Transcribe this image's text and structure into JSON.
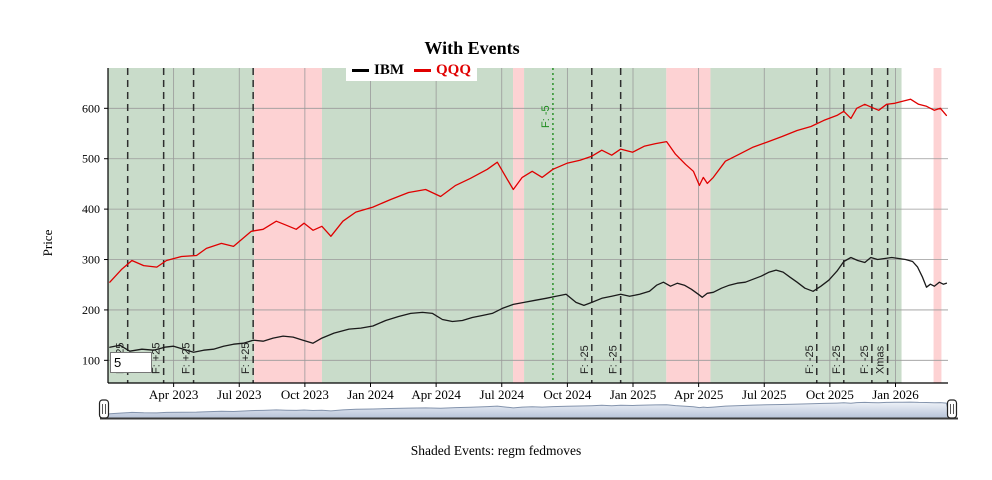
{
  "header": {
    "title": "With Events"
  },
  "legend": {
    "items": [
      {
        "label": "IBM",
        "color": "#000000"
      },
      {
        "label": "QQQ",
        "color": "#e00000"
      }
    ]
  },
  "controls": {
    "offset_input_value": "5"
  },
  "caption": {
    "text": "Shaded Events: regm fedmoves"
  },
  "chart_data": {
    "type": "line",
    "title": "With Events",
    "xlabel": "",
    "ylabel": "Price",
    "xlim": [
      2023.0,
      2026.2
    ],
    "ylim": [
      55,
      680
    ],
    "grid": true,
    "legend_position": "top",
    "yticks": [
      100,
      200,
      300,
      400,
      500,
      600
    ],
    "xticks": [
      {
        "x": 2023.25,
        "label": "Apr 2023"
      },
      {
        "x": 2023.5,
        "label": "Jul 2023"
      },
      {
        "x": 2023.75,
        "label": "Oct 2023"
      },
      {
        "x": 2024.0,
        "label": "Jan 2024"
      },
      {
        "x": 2024.25,
        "label": "Apr 2024"
      },
      {
        "x": 2024.5,
        "label": "Jul 2024"
      },
      {
        "x": 2024.75,
        "label": "Oct 2024"
      },
      {
        "x": 2025.0,
        "label": "Jan 2025"
      },
      {
        "x": 2025.25,
        "label": "Apr 2025"
      },
      {
        "x": 2025.5,
        "label": "Jul 2025"
      },
      {
        "x": 2025.75,
        "label": "Oct 2025"
      },
      {
        "x": 2026.0,
        "label": "Jan 2026"
      }
    ],
    "shaded_regions": [
      {
        "x0": 2023.0,
        "x1": 2023.557,
        "color": "#c9dcca"
      },
      {
        "x0": 2023.557,
        "x1": 2023.815,
        "color": "#fdd2d3"
      },
      {
        "x0": 2023.815,
        "x1": 2024.543,
        "color": "#c9dcca"
      },
      {
        "x0": 2024.543,
        "x1": 2024.585,
        "color": "#fdd2d3"
      },
      {
        "x0": 2024.585,
        "x1": 2025.127,
        "color": "#c9dcca"
      },
      {
        "x0": 2025.127,
        "x1": 2025.295,
        "color": "#fdd2d3"
      },
      {
        "x0": 2025.295,
        "x1": 2026.023,
        "color": "#c9dcca"
      },
      {
        "x0": 2026.145,
        "x1": 2026.175,
        "color": "#fdd2d3"
      }
    ],
    "events": [
      {
        "x": 2023.075,
        "label": "F: +25",
        "line": "dashed",
        "color": "#2e2e2e",
        "label_side": "bottom"
      },
      {
        "x": 2023.212,
        "label": "F: +25",
        "line": "dashed",
        "color": "#2e2e2e",
        "label_side": "bottom"
      },
      {
        "x": 2023.326,
        "label": "F: +25",
        "line": "dashed",
        "color": "#2e2e2e",
        "label_side": "bottom"
      },
      {
        "x": 2023.553,
        "label": "F: +25",
        "line": "dashed",
        "color": "#2e2e2e",
        "label_side": "bottom"
      },
      {
        "x": 2024.695,
        "label": "F: -5",
        "line": "dotted",
        "color": "#1e8c1e",
        "label_side": "top"
      },
      {
        "x": 2024.843,
        "label": "F: -25",
        "line": "dashed",
        "color": "#2e2e2e",
        "label_side": "bottom"
      },
      {
        "x": 2024.953,
        "label": "F: -25",
        "line": "dashed",
        "color": "#2e2e2e",
        "label_side": "bottom"
      },
      {
        "x": 2025.7,
        "label": "F: -25",
        "line": "dashed",
        "color": "#2e2e2e",
        "label_side": "bottom"
      },
      {
        "x": 2025.803,
        "label": "F: -25",
        "line": "dashed",
        "color": "#2e2e2e",
        "label_side": "bottom"
      },
      {
        "x": 2025.91,
        "label": "F: -25",
        "line": "dashed",
        "color": "#2e2e2e",
        "label_side": "bottom"
      },
      {
        "x": 2025.97,
        "label": "Xmas",
        "line": "dashed",
        "color": "#2e2e2e",
        "label_side": "bottom"
      }
    ],
    "series": [
      {
        "name": "IBM",
        "color": "#1a1a1a",
        "points": [
          [
            2023.007,
            126
          ],
          [
            2023.045,
            130
          ],
          [
            2023.083,
            118
          ],
          [
            2023.129,
            122
          ],
          [
            2023.174,
            120
          ],
          [
            2023.216,
            126
          ],
          [
            2023.25,
            128
          ],
          [
            2023.288,
            122
          ],
          [
            2023.326,
            116
          ],
          [
            2023.364,
            120
          ],
          [
            2023.402,
            122
          ],
          [
            2023.44,
            128
          ],
          [
            2023.478,
            132
          ],
          [
            2023.516,
            134
          ],
          [
            2023.553,
            140
          ],
          [
            2023.591,
            138
          ],
          [
            2023.629,
            144
          ],
          [
            2023.667,
            148
          ],
          [
            2023.705,
            146
          ],
          [
            2023.743,
            140
          ],
          [
            2023.781,
            134
          ],
          [
            2023.815,
            144
          ],
          [
            2023.861,
            154
          ],
          [
            2023.918,
            162
          ],
          [
            2023.963,
            164
          ],
          [
            2024.009,
            168
          ],
          [
            2024.058,
            179
          ],
          [
            2024.107,
            187
          ],
          [
            2024.153,
            193
          ],
          [
            2024.198,
            195
          ],
          [
            2024.236,
            193
          ],
          [
            2024.274,
            181
          ],
          [
            2024.312,
            177
          ],
          [
            2024.35,
            179
          ],
          [
            2024.388,
            185
          ],
          [
            2024.426,
            189
          ],
          [
            2024.464,
            193
          ],
          [
            2024.502,
            203
          ],
          [
            2024.544,
            211
          ],
          [
            2024.585,
            215
          ],
          [
            2024.627,
            219
          ],
          [
            2024.669,
            223
          ],
          [
            2024.707,
            227
          ],
          [
            2024.745,
            231
          ],
          [
            2024.783,
            215
          ],
          [
            2024.813,
            209
          ],
          [
            2024.843,
            215
          ],
          [
            2024.881,
            223
          ],
          [
            2024.919,
            227
          ],
          [
            2024.953,
            231
          ],
          [
            2024.987,
            227
          ],
          [
            2025.025,
            231
          ],
          [
            2025.063,
            237
          ],
          [
            2025.09,
            249
          ],
          [
            2025.116,
            255
          ],
          [
            2025.143,
            247
          ],
          [
            2025.169,
            253
          ],
          [
            2025.196,
            249
          ],
          [
            2025.223,
            241
          ],
          [
            2025.249,
            231
          ],
          [
            2025.264,
            225
          ],
          [
            2025.283,
            233
          ],
          [
            2025.306,
            235
          ],
          [
            2025.337,
            243
          ],
          [
            2025.367,
            249
          ],
          [
            2025.397,
            253
          ],
          [
            2025.428,
            255
          ],
          [
            2025.458,
            261
          ],
          [
            2025.488,
            267
          ],
          [
            2025.519,
            275
          ],
          [
            2025.545,
            279
          ],
          [
            2025.572,
            275
          ],
          [
            2025.598,
            265
          ],
          [
            2025.625,
            255
          ],
          [
            2025.655,
            243
          ],
          [
            2025.686,
            237
          ],
          [
            2025.716,
            247
          ],
          [
            2025.746,
            259
          ],
          [
            2025.777,
            277
          ],
          [
            2025.803,
            296
          ],
          [
            2025.83,
            304
          ],
          [
            2025.856,
            298
          ],
          [
            2025.883,
            294
          ],
          [
            2025.906,
            304
          ],
          [
            2025.932,
            300
          ],
          [
            2025.959,
            302
          ],
          [
            2025.986,
            304
          ],
          [
            2026.012,
            302
          ],
          [
            2026.038,
            300
          ],
          [
            2026.065,
            296
          ],
          [
            2026.084,
            285
          ],
          [
            2026.103,
            265
          ],
          [
            2026.118,
            245
          ],
          [
            2026.133,
            251
          ],
          [
            2026.148,
            247
          ],
          [
            2026.167,
            255
          ],
          [
            2026.182,
            251
          ],
          [
            2026.194,
            253
          ]
        ]
      },
      {
        "name": "QQQ",
        "color": "#e00000",
        "points": [
          [
            2023.007,
            255
          ],
          [
            2023.053,
            281
          ],
          [
            2023.091,
            298
          ],
          [
            2023.136,
            288
          ],
          [
            2023.186,
            285
          ],
          [
            2023.223,
            298
          ],
          [
            2023.28,
            306
          ],
          [
            2023.337,
            308
          ],
          [
            2023.375,
            322
          ],
          [
            2023.432,
            332
          ],
          [
            2023.478,
            326
          ],
          [
            2023.546,
            356
          ],
          [
            2023.591,
            360
          ],
          [
            2023.641,
            376
          ],
          [
            2023.679,
            368
          ],
          [
            2023.717,
            360
          ],
          [
            2023.747,
            372
          ],
          [
            2023.781,
            358
          ],
          [
            2023.815,
            366
          ],
          [
            2023.849,
            346
          ],
          [
            2023.895,
            376
          ],
          [
            2023.944,
            394
          ],
          [
            2024.009,
            404
          ],
          [
            2024.077,
            419
          ],
          [
            2024.145,
            433
          ],
          [
            2024.21,
            439
          ],
          [
            2024.267,
            425
          ],
          [
            2024.324,
            447
          ],
          [
            2024.38,
            461
          ],
          [
            2024.445,
            479
          ],
          [
            2024.483,
            493
          ],
          [
            2024.521,
            459
          ],
          [
            2024.544,
            439
          ],
          [
            2024.578,
            463
          ],
          [
            2024.616,
            475
          ],
          [
            2024.654,
            463
          ],
          [
            2024.695,
            479
          ],
          [
            2024.748,
            491
          ],
          [
            2024.798,
            497
          ],
          [
            2024.843,
            505
          ],
          [
            2024.881,
            517
          ],
          [
            2024.919,
            507
          ],
          [
            2024.953,
            519
          ],
          [
            2024.999,
            513
          ],
          [
            2025.044,
            525
          ],
          [
            2025.086,
            530
          ],
          [
            2025.128,
            534
          ],
          [
            2025.162,
            509
          ],
          [
            2025.2,
            489
          ],
          [
            2025.23,
            475
          ],
          [
            2025.253,
            447
          ],
          [
            2025.268,
            463
          ],
          [
            2025.283,
            451
          ],
          [
            2025.306,
            463
          ],
          [
            2025.352,
            495
          ],
          [
            2025.405,
            509
          ],
          [
            2025.458,
            523
          ],
          [
            2025.511,
            533
          ],
          [
            2025.568,
            544
          ],
          [
            2025.625,
            556
          ],
          [
            2025.678,
            564
          ],
          [
            2025.727,
            576
          ],
          [
            2025.777,
            586
          ],
          [
            2025.803,
            594
          ],
          [
            2025.83,
            580
          ],
          [
            2025.852,
            600
          ],
          [
            2025.883,
            608
          ],
          [
            2025.909,
            602
          ],
          [
            2025.936,
            596
          ],
          [
            2025.966,
            608
          ],
          [
            2025.997,
            610
          ],
          [
            2026.027,
            614
          ],
          [
            2026.057,
            618
          ],
          [
            2026.088,
            608
          ],
          [
            2026.118,
            604
          ],
          [
            2026.148,
            596
          ],
          [
            2026.171,
            600
          ],
          [
            2026.194,
            586
          ]
        ]
      }
    ],
    "colors": {
      "grid": "#9a9a9a",
      "axis": "#000000",
      "band_green": "#c9dcca",
      "band_pink": "#fdd2d3",
      "event_green": "#1e8c1e"
    }
  },
  "range_selector": {
    "band_color_top": "#eef2f8",
    "band_color_bottom": "#b7c3d8",
    "band_edge_color": "#8494ad",
    "track_color": "#3c3c3c"
  }
}
